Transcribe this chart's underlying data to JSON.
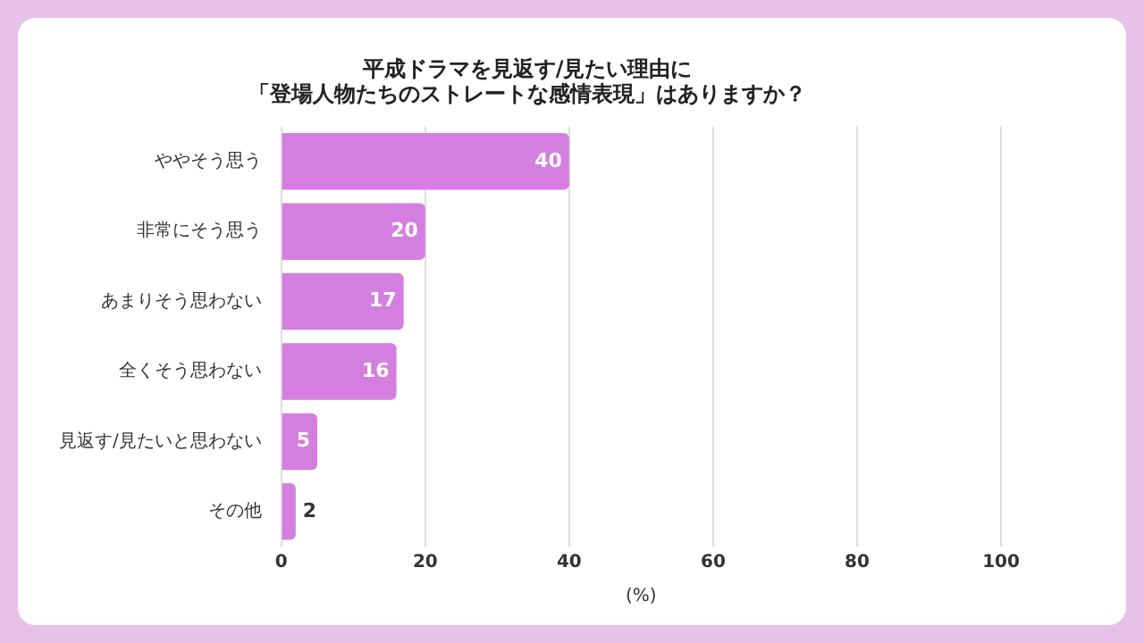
{
  "chart_data": {
    "type": "bar",
    "orientation": "horizontal",
    "title": "平成ドラマを見返す/見たい理由に",
    "subtitle": "「登場人物たちのストレートな感情表現」はありますか？",
    "categories": [
      "ややそう思う",
      "非常にそう思う",
      "あまりそう思わない",
      "全くそう思わない",
      "見返す/見たいと思わない",
      "その他"
    ],
    "values": [
      40,
      20,
      17,
      16,
      5,
      2
    ],
    "color": "#d47fe0",
    "xlim": [
      0,
      100
    ],
    "xticks": [
      0,
      20,
      40,
      60,
      80,
      100
    ],
    "xlabel": "(%)",
    "grid": "x",
    "data_labels": true,
    "legend": false
  }
}
